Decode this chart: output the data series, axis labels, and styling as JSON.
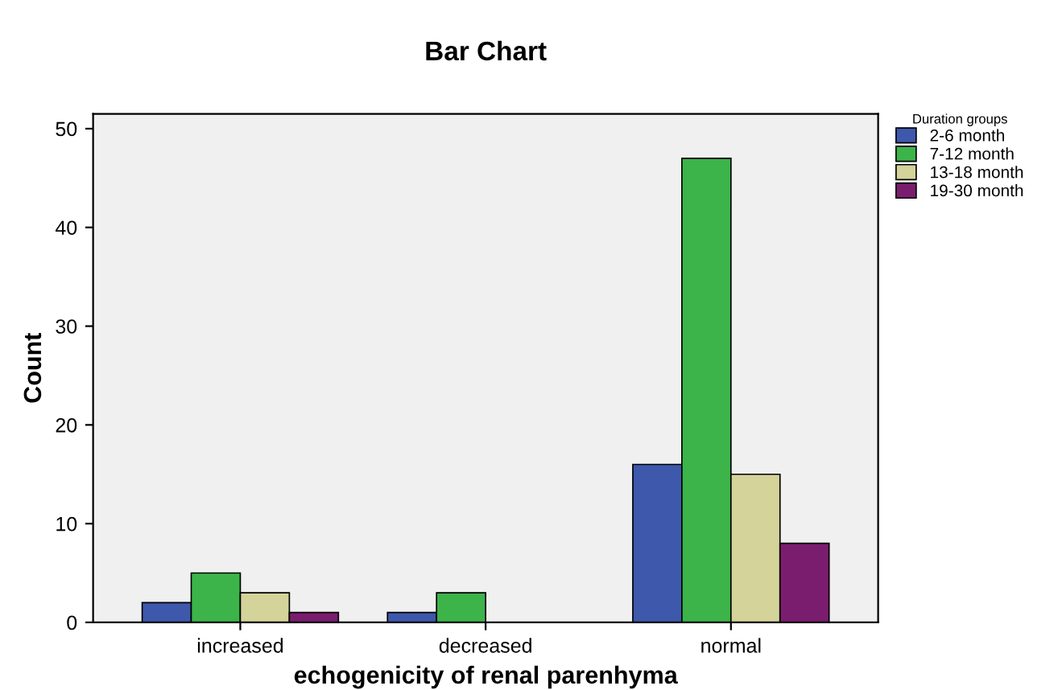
{
  "chart_data": {
    "type": "bar",
    "title": "Bar Chart",
    "xlabel": "echogenicity of renal parenhyma",
    "ylabel": "Count",
    "legend_title": "Duration groups",
    "categories": [
      "increased",
      "decreased",
      "normal"
    ],
    "series": [
      {
        "name": "2-6 month",
        "color": "#3e58ac",
        "values": [
          2,
          1,
          16
        ]
      },
      {
        "name": "7-12 month",
        "color": "#3cb44a",
        "values": [
          5,
          3,
          47
        ]
      },
      {
        "name": "13-18 month",
        "color": "#d4d39a",
        "values": [
          3,
          null,
          15
        ]
      },
      {
        "name": "19-30 month",
        "color": "#7b1d6e",
        "values": [
          1,
          null,
          8
        ]
      }
    ],
    "ylim": [
      0,
      51.5
    ],
    "yticks": [
      0,
      10,
      20,
      30,
      40,
      50
    ],
    "grid": false,
    "legend": "top right"
  }
}
